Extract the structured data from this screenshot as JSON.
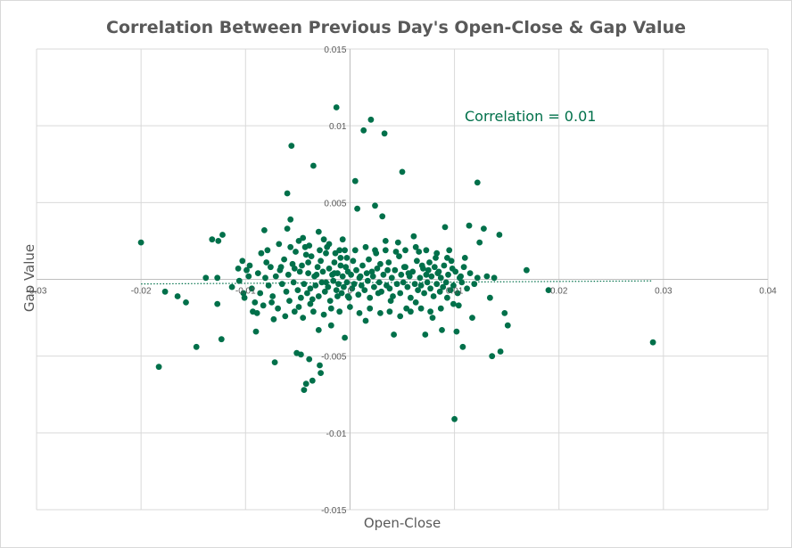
{
  "chart_data": {
    "type": "scatter",
    "title": "Correlation Between Previous  Day's Open-Close & Gap Value",
    "xlabel": "Open-Close",
    "ylabel": "Gap Value",
    "annotation": "Correlation = 0.01",
    "xlim": [
      -0.03,
      0.04
    ],
    "ylim": [
      -0.015,
      0.015
    ],
    "x_ticks": [
      -0.03,
      -0.02,
      -0.01,
      0,
      0.01,
      0.02,
      0.03,
      0.04
    ],
    "x_tick_labels": [
      "-0.03",
      "-0.02",
      "-0.01",
      "0",
      "0.01",
      "0.02",
      "0.03",
      "0.04"
    ],
    "y_ticks": [
      -0.015,
      -0.01,
      -0.005,
      0,
      0.005,
      0.01,
      0.015
    ],
    "y_tick_labels": [
      "-0.015",
      "-0.01",
      "-0.005",
      "0",
      "0.005",
      "0.01",
      "0.015"
    ],
    "grid": true,
    "marker_color": "#00704A",
    "trendline": {
      "style": "dotted",
      "x": [
        -0.02,
        0.029
      ],
      "y": [
        -0.0003,
        -0.0001
      ]
    },
    "points": [
      [
        -0.02,
        0.0024
      ],
      [
        -0.0183,
        -0.0057
      ],
      [
        -0.0177,
        -0.0008
      ],
      [
        -0.0165,
        -0.0011
      ],
      [
        -0.0157,
        -0.0015
      ],
      [
        -0.0147,
        -0.0044
      ],
      [
        -0.0138,
        0.0001
      ],
      [
        -0.0132,
        0.0026
      ],
      [
        -0.0127,
        0.0001
      ],
      [
        -0.0127,
        -0.0016
      ],
      [
        -0.0126,
        0.0025
      ],
      [
        -0.0122,
        0.0029
      ],
      [
        -0.0123,
        -0.0039
      ],
      [
        -0.0113,
        -0.0005
      ],
      [
        -0.0107,
        0.0007
      ],
      [
        -0.0103,
        0.0012
      ],
      [
        -0.0102,
        -0.0009
      ],
      [
        -0.0096,
        0.0009
      ],
      [
        -0.0093,
        -0.0021
      ],
      [
        -0.009,
        -0.0034
      ],
      [
        -0.0085,
        0.0017
      ],
      [
        -0.0082,
        0.0032
      ],
      [
        -0.008,
        0.0011
      ],
      [
        -0.0075,
        -0.0015
      ],
      [
        -0.0072,
        -0.0054
      ],
      [
        -0.0066,
        0.0008
      ],
      [
        -0.006,
        0.0033
      ],
      [
        -0.006,
        0.0056
      ],
      [
        -0.0057,
        0.0039
      ],
      [
        -0.0056,
        0.0087
      ],
      [
        -0.0053,
        0.0007
      ],
      [
        -0.0051,
        -0.0048
      ],
      [
        -0.0049,
        -0.0018
      ],
      [
        -0.0047,
        -0.0049
      ],
      [
        -0.0044,
        -0.0072
      ],
      [
        -0.0045,
        0.0027
      ],
      [
        -0.0042,
        0.0016
      ],
      [
        -0.0042,
        -0.0068
      ],
      [
        -0.004,
        0.0011
      ],
      [
        -0.0039,
        -0.0052
      ],
      [
        -0.0038,
        -0.0016
      ],
      [
        -0.0036,
        -0.0066
      ],
      [
        -0.0035,
        0.0074
      ],
      [
        -0.0032,
        0.0003
      ],
      [
        -0.003,
        0.0031
      ],
      [
        -0.003,
        -0.0033
      ],
      [
        -0.0029,
        -0.0056
      ],
      [
        -0.0028,
        -0.0061
      ],
      [
        -0.0025,
        0.0026
      ],
      [
        -0.0023,
        -0.0002
      ],
      [
        -0.002,
        0.0023
      ],
      [
        -0.0018,
        -0.003
      ],
      [
        -0.0015,
        0.0004
      ],
      [
        -0.0013,
        0.0112
      ],
      [
        -0.0012,
        -0.0011
      ],
      [
        -0.001,
        0.0019
      ],
      [
        -0.0009,
        0.0009
      ],
      [
        -0.0007,
        0.0026
      ],
      [
        -0.0005,
        -0.0038
      ],
      [
        -0.0003,
        0.0014
      ],
      [
        -0.0002,
        -0.0011
      ],
      [
        0.0005,
        0.0064
      ],
      [
        0.0007,
        0.0046
      ],
      [
        0.001,
        0.0002
      ],
      [
        0.0013,
        0.0097
      ],
      [
        0.0015,
        -0.0027
      ],
      [
        0.002,
        0.0104
      ],
      [
        0.0021,
        0.0005
      ],
      [
        0.0024,
        0.0048
      ],
      [
        0.0025,
        0.0017
      ],
      [
        0.0027,
        -0.0009
      ],
      [
        0.0031,
        0.0041
      ],
      [
        0.0033,
        0.0095
      ],
      [
        0.0034,
        0.0025
      ],
      [
        0.0036,
        0.0006
      ],
      [
        0.0039,
        -0.0014
      ],
      [
        0.0042,
        -0.0036
      ],
      [
        0.0046,
        0.0024
      ],
      [
        0.005,
        0.007
      ],
      [
        0.0052,
        0.0008
      ],
      [
        0.0054,
        -0.0019
      ],
      [
        0.0056,
        0.0004
      ],
      [
        0.0061,
        0.0028
      ],
      [
        0.0063,
        -0.0015
      ],
      [
        0.0066,
        0.0018
      ],
      [
        0.0069,
        0.0009
      ],
      [
        0.0072,
        -0.0036
      ],
      [
        0.0076,
        0.0011
      ],
      [
        0.0079,
        -0.0025
      ],
      [
        0.0082,
        0.0014
      ],
      [
        0.0085,
        0.0005
      ],
      [
        0.0088,
        -0.0033
      ],
      [
        0.0091,
        0.0034
      ],
      [
        0.0093,
        -0.0012
      ],
      [
        0.0095,
        0.0019
      ],
      [
        0.0098,
        0.0007
      ],
      [
        0.01,
        -0.0091
      ],
      [
        0.0102,
        -0.0034
      ],
      [
        0.0104,
        -0.0017
      ],
      [
        0.0106,
        0.0002
      ],
      [
        0.0108,
        -0.0044
      ],
      [
        0.011,
        0.0014
      ],
      [
        0.0114,
        0.0035
      ],
      [
        0.0117,
        -0.0025
      ],
      [
        0.0122,
        0.0063
      ],
      [
        0.0122,
        0.0001
      ],
      [
        0.0124,
        0.0024
      ],
      [
        0.0128,
        0.0033
      ],
      [
        0.0131,
        0.0002
      ],
      [
        0.0134,
        -0.0012
      ],
      [
        0.0136,
        -0.005
      ],
      [
        0.0138,
        0.0001
      ],
      [
        0.0143,
        0.0029
      ],
      [
        0.0144,
        -0.0047
      ],
      [
        0.0148,
        -0.0022
      ],
      [
        0.0151,
        -0.003
      ],
      [
        0.0169,
        0.0006
      ],
      [
        0.019,
        -0.0007
      ],
      [
        0.029,
        -0.0041
      ],
      [
        -0.0106,
        -0.0001
      ],
      [
        -0.0101,
        -0.0012
      ],
      [
        -0.0097,
        0.0002
      ],
      [
        -0.0094,
        -0.0006
      ],
      [
        -0.0091,
        -0.0015
      ],
      [
        -0.0088,
        0.0004
      ],
      [
        -0.0086,
        -0.0009
      ],
      [
        -0.0083,
        -0.0017
      ],
      [
        -0.0081,
        0.0001
      ],
      [
        -0.0078,
        -0.0004
      ],
      [
        -0.0076,
        0.0008
      ],
      [
        -0.0074,
        -0.0011
      ],
      [
        -0.0071,
        0.0002
      ],
      [
        -0.0069,
        -0.0019
      ],
      [
        -0.0067,
        0.0006
      ],
      [
        -0.0065,
        -0.0003
      ],
      [
        -0.0063,
        0.0013
      ],
      [
        -0.0061,
        -0.0008
      ],
      [
        -0.0059,
        0.0003
      ],
      [
        -0.0058,
        -0.0014
      ],
      [
        -0.0055,
        0.001
      ],
      [
        -0.0054,
        -0.0002
      ],
      [
        -0.0052,
        0.0018
      ],
      [
        -0.005,
        -0.0007
      ],
      [
        -0.0048,
        0.0005
      ],
      [
        -0.0047,
        -0.0012
      ],
      [
        -0.0046,
        0.0009
      ],
      [
        -0.0044,
        -0.0003
      ],
      [
        -0.0043,
        0.0021
      ],
      [
        -0.0041,
        -0.0009
      ],
      [
        -0.004,
        0.0004
      ],
      [
        -0.0038,
        -0.0006
      ],
      [
        -0.0037,
        0.0015
      ],
      [
        -0.0036,
        -0.0013
      ],
      [
        -0.0034,
        0.0002
      ],
      [
        -0.0033,
        -0.0004
      ],
      [
        -0.0031,
        0.0008
      ],
      [
        -0.003,
        -0.0011
      ],
      [
        -0.0028,
        0.0012
      ],
      [
        -0.0027,
        -0.0002
      ],
      [
        -0.0026,
        0.0005
      ],
      [
        -0.0024,
        -0.0008
      ],
      [
        -0.0023,
        0.0017
      ],
      [
        -0.0021,
        -0.0005
      ],
      [
        -0.002,
        0.0007
      ],
      [
        -0.0019,
        -0.0014
      ],
      [
        -0.0017,
        0.0003
      ],
      [
        -0.0016,
        -0.0001
      ],
      [
        -0.0015,
        0.0011
      ],
      [
        -0.0013,
        -0.0007
      ],
      [
        -0.0012,
        0.0004
      ],
      [
        -0.0011,
        -0.0003
      ],
      [
        -0.0009,
        0.0014
      ],
      [
        -0.0008,
        -0.0009
      ],
      [
        -0.0007,
        0.0002
      ],
      [
        -0.0006,
        -0.0005
      ],
      [
        -0.0004,
        0.0008
      ],
      [
        -0.0003,
        -0.0002
      ],
      [
        -0.0002,
        0.0005
      ],
      [
        -0.0001,
        -0.0012
      ],
      [
        0.0001,
        0.0003
      ],
      [
        0.0002,
        -0.0006
      ],
      [
        0.0003,
        0.0012
      ],
      [
        0.0004,
        -0.0003
      ],
      [
        0.0006,
        0.0006
      ],
      [
        0.0008,
        -0.001
      ],
      [
        0.0009,
        0.0001
      ],
      [
        0.0011,
        -0.0004
      ],
      [
        0.0012,
        0.0009
      ],
      [
        0.0014,
        -0.0007
      ],
      [
        0.0016,
        0.0004
      ],
      [
        0.0017,
        -0.0001
      ],
      [
        0.0018,
        0.0013
      ],
      [
        0.0019,
        -0.0012
      ],
      [
        0.0022,
        0.0002
      ],
      [
        0.0023,
        -0.0005
      ],
      [
        0.0026,
        0.0007
      ],
      [
        0.0028,
        -0.0002
      ],
      [
        0.0029,
        0.001
      ],
      [
        0.003,
        -0.0008
      ],
      [
        0.0032,
        0.0003
      ],
      [
        0.0035,
        -0.0004
      ],
      [
        0.0037,
        0.0011
      ],
      [
        0.0038,
        -0.0006
      ],
      [
        0.004,
        0.0001
      ],
      [
        0.0041,
        -0.0011
      ],
      [
        0.0043,
        0.0006
      ],
      [
        0.0045,
        -0.0003
      ],
      [
        0.0047,
        0.0015
      ],
      [
        0.0048,
        -0.0009
      ],
      [
        0.0049,
        0.0003
      ],
      [
        0.0051,
        -0.0002
      ],
      [
        0.0053,
        0.0008
      ],
      [
        0.0055,
        -0.0005
      ],
      [
        0.0057,
        0.0002
      ],
      [
        0.0058,
        -0.0012
      ],
      [
        0.006,
        0.0005
      ],
      [
        0.0062,
        -0.0003
      ],
      [
        0.0064,
        0.0012
      ],
      [
        0.0065,
        -0.0007
      ],
      [
        0.0067,
        0.0001
      ],
      [
        0.0068,
        -0.0004
      ],
      [
        0.007,
        0.0007
      ],
      [
        0.0071,
        -0.0009
      ],
      [
        0.0073,
        0.0003
      ],
      [
        0.0074,
        -0.0002
      ],
      [
        0.0075,
        0.0006
      ],
      [
        0.0077,
        -0.0006
      ],
      [
        0.0078,
        0.0002
      ],
      [
        0.008,
        -0.0011
      ],
      [
        0.0081,
        0.0008
      ],
      [
        0.0083,
        -0.0003
      ],
      [
        0.0084,
        0.0004
      ],
      [
        0.0086,
        -0.0008
      ],
      [
        0.0087,
        0.0001
      ],
      [
        0.0089,
        -0.0005
      ],
      [
        0.009,
        0.0009
      ],
      [
        0.0092,
        -0.0002
      ],
      [
        0.0094,
        0.0003
      ],
      [
        0.0096,
        -0.0007
      ],
      [
        0.0097,
        0.0012
      ],
      [
        0.0099,
        -0.0004
      ],
      [
        0.0101,
        0.0005
      ],
      [
        0.0103,
        -0.0009
      ],
      [
        0.0105,
        0.0001
      ],
      [
        0.0107,
        -0.0002
      ],
      [
        0.0109,
        0.0008
      ],
      [
        0.0112,
        -0.0006
      ],
      [
        0.0115,
        0.0004
      ],
      [
        0.0119,
        -0.0003
      ],
      [
        -0.0099,
        0.0006
      ],
      [
        -0.0089,
        -0.0022
      ],
      [
        -0.0079,
        0.0019
      ],
      [
        -0.0073,
        -0.0026
      ],
      [
        -0.0068,
        0.0023
      ],
      [
        -0.0062,
        -0.0024
      ],
      [
        -0.0057,
        0.0021
      ],
      [
        -0.0053,
        -0.0021
      ],
      [
        -0.0049,
        0.0025
      ],
      [
        -0.0045,
        -0.0025
      ],
      [
        -0.0039,
        0.0022
      ],
      [
        -0.0035,
        -0.0021
      ],
      [
        -0.0029,
        0.0019
      ],
      [
        -0.0025,
        -0.0023
      ],
      [
        -0.0022,
        0.0021
      ],
      [
        -0.0018,
        -0.0019
      ],
      [
        -0.0014,
        0.0017
      ],
      [
        -0.001,
        -0.0021
      ],
      [
        -0.0005,
        0.0019
      ],
      [
        0.0,
        -0.0018
      ],
      [
        0.0005,
        0.0019
      ],
      [
        0.0009,
        -0.0022
      ],
      [
        0.0015,
        0.0021
      ],
      [
        0.0019,
        -0.0019
      ],
      [
        0.0024,
        0.0019
      ],
      [
        0.0029,
        -0.0022
      ],
      [
        0.0034,
        0.0019
      ],
      [
        0.0038,
        -0.0021
      ],
      [
        0.0044,
        0.0018
      ],
      [
        0.0048,
        -0.0024
      ],
      [
        0.0053,
        0.0019
      ],
      [
        0.0058,
        -0.0021
      ],
      [
        0.0063,
        0.0021
      ],
      [
        0.0068,
        -0.0019
      ],
      [
        0.0073,
        0.0019
      ],
      [
        0.0077,
        -0.0021
      ],
      [
        0.0083,
        0.0017
      ],
      [
        0.0087,
        -0.0019
      ],
      [
        0.0093,
        0.0014
      ],
      [
        0.0099,
        -0.0016
      ]
    ]
  }
}
